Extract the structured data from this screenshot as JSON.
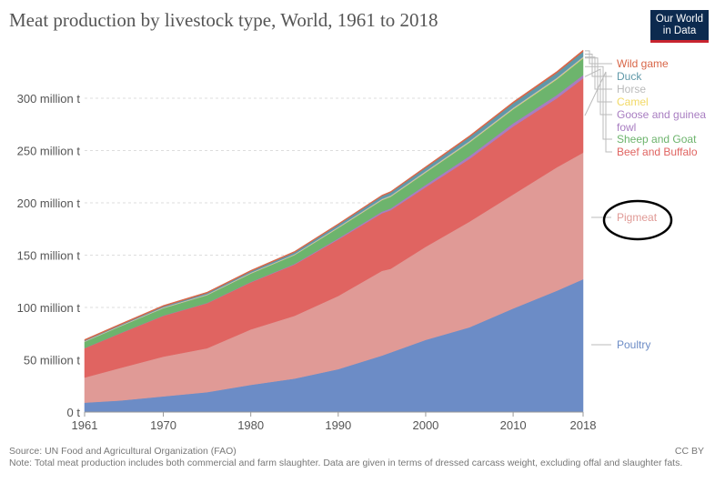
{
  "title": "Meat production by livestock type, World, 1961 to 2018",
  "logo": {
    "line1": "Our World",
    "line2": "in Data"
  },
  "footer": {
    "source": "Source: UN Food and Agricultural Organization (FAO)",
    "note": "Note: Total meat production includes both commercial and farm slaughter. Data are given in terms of dressed carcass weight, excluding offal and slaughter fats."
  },
  "license": "CC BY",
  "chart_data": {
    "type": "area",
    "stacked": true,
    "x": [
      1961,
      1965,
      1970,
      1975,
      1980,
      1985,
      1990,
      1995,
      1996,
      2000,
      2005,
      2010,
      2015,
      2018
    ],
    "xticks": [
      1961,
      1970,
      1980,
      1990,
      2000,
      2010,
      2018
    ],
    "ylim": [
      0,
      340
    ],
    "yticks": [
      0,
      50,
      100,
      150,
      200,
      250,
      300
    ],
    "ytick_labels": [
      "0 t",
      "50 million t",
      "100 million t",
      "150 million t",
      "200 million t",
      "250 million t",
      "300 million t"
    ],
    "grid": true,
    "legend_position": "right",
    "series": [
      {
        "name": "Poultry",
        "color": "#6c8cc6",
        "values": [
          9,
          11,
          15,
          19,
          26,
          32,
          41,
          54,
          57,
          69,
          81,
          99,
          116,
          127
        ]
      },
      {
        "name": "Pigmeat",
        "color": "#e09a96",
        "values": [
          24,
          31,
          38,
          42,
          53,
          60,
          70,
          81,
          80,
          89,
          101,
          109,
          118,
          121
        ]
      },
      {
        "name": "Beef and Buffalo",
        "color": "#e06461",
        "values": [
          28,
          33,
          39,
          43,
          45,
          49,
          54,
          55,
          56,
          57,
          60,
          65,
          66,
          71
        ]
      },
      {
        "name": "Goose and guinea fowl",
        "color": "#a87dc1",
        "values": [
          0.2,
          0.2,
          0.3,
          0.3,
          0.4,
          0.6,
          1.0,
          1.6,
          1.7,
          2.2,
          2.7,
          3.0,
          3.1,
          3.2
        ]
      },
      {
        "name": "Sheep and Goat",
        "color": "#6db46d",
        "values": [
          6,
          6.5,
          7,
          7.5,
          8,
          8.5,
          10,
          11,
          11.2,
          11.8,
          13,
          13.5,
          15,
          16
        ]
      },
      {
        "name": "Camel",
        "color": "#f2d966",
        "values": [
          0.1,
          0.1,
          0.15,
          0.15,
          0.2,
          0.2,
          0.25,
          0.3,
          0.3,
          0.35,
          0.4,
          0.45,
          0.55,
          0.6
        ]
      },
      {
        "name": "Horse",
        "color": "#bbbbbb",
        "values": [
          0.6,
          0.6,
          0.7,
          0.7,
          0.7,
          0.7,
          0.8,
          0.9,
          0.9,
          1.0,
          1.0,
          1.0,
          1.0,
          1.0
        ]
      },
      {
        "name": "Duck",
        "color": "#5f98a8",
        "values": [
          0.5,
          0.6,
          0.8,
          1.0,
          1.2,
          1.6,
          2.0,
          2.6,
          2.8,
          3.1,
          3.7,
          4.2,
          4.5,
          4.7
        ]
      },
      {
        "name": "Wild game",
        "color": "#d86648",
        "values": [
          1.0,
          1.0,
          1.0,
          1.0,
          1.0,
          1.0,
          1.0,
          1.0,
          1.0,
          1.2,
          1.3,
          1.4,
          1.5,
          1.6
        ]
      }
    ],
    "legend_order": [
      "Wild game",
      "Duck",
      "Horse",
      "Camel",
      "Goose and guinea fowl",
      "Sheep and Goat",
      "Beef and Buffalo",
      "Pigmeat",
      "Poultry"
    ],
    "annotation": {
      "target": "Pigmeat",
      "shape": "ellipse",
      "color": "#000000"
    }
  }
}
